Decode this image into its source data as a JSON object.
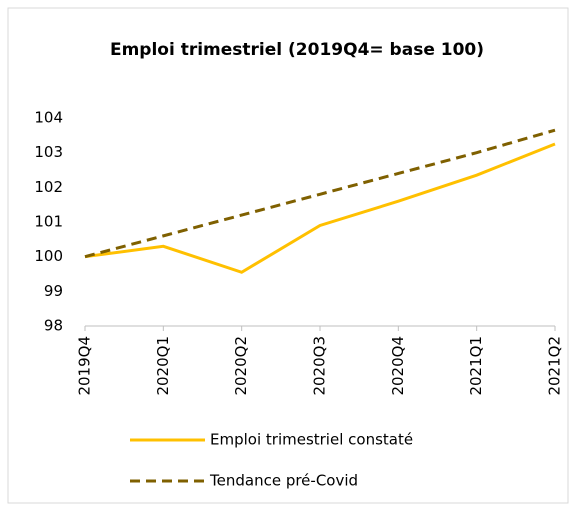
{
  "chart_data": {
    "type": "line",
    "title": "Emploi trimestriel (2019Q4= base 100)",
    "categories": [
      "2019Q4",
      "2020Q1",
      "2020Q2",
      "2020Q3",
      "2020Q4",
      "2021Q1",
      "2021Q2"
    ],
    "series": [
      {
        "name": "Emploi trimestriel constaté",
        "color": "#ffc000",
        "dashed": false,
        "values": [
          100,
          100.3,
          99.55,
          100.9,
          101.6,
          102.35,
          103.25
        ]
      },
      {
        "name": "Tendance pré-Covid",
        "color": "#7f6000",
        "dashed": true,
        "values": [
          100,
          100.6,
          101.2,
          101.8,
          102.4,
          103.0,
          103.65
        ]
      }
    ],
    "ylim": [
      98,
      104
    ],
    "yticks": [
      98,
      99,
      100,
      101,
      102,
      103,
      104
    ],
    "grid": false,
    "legend": "bottom"
  }
}
